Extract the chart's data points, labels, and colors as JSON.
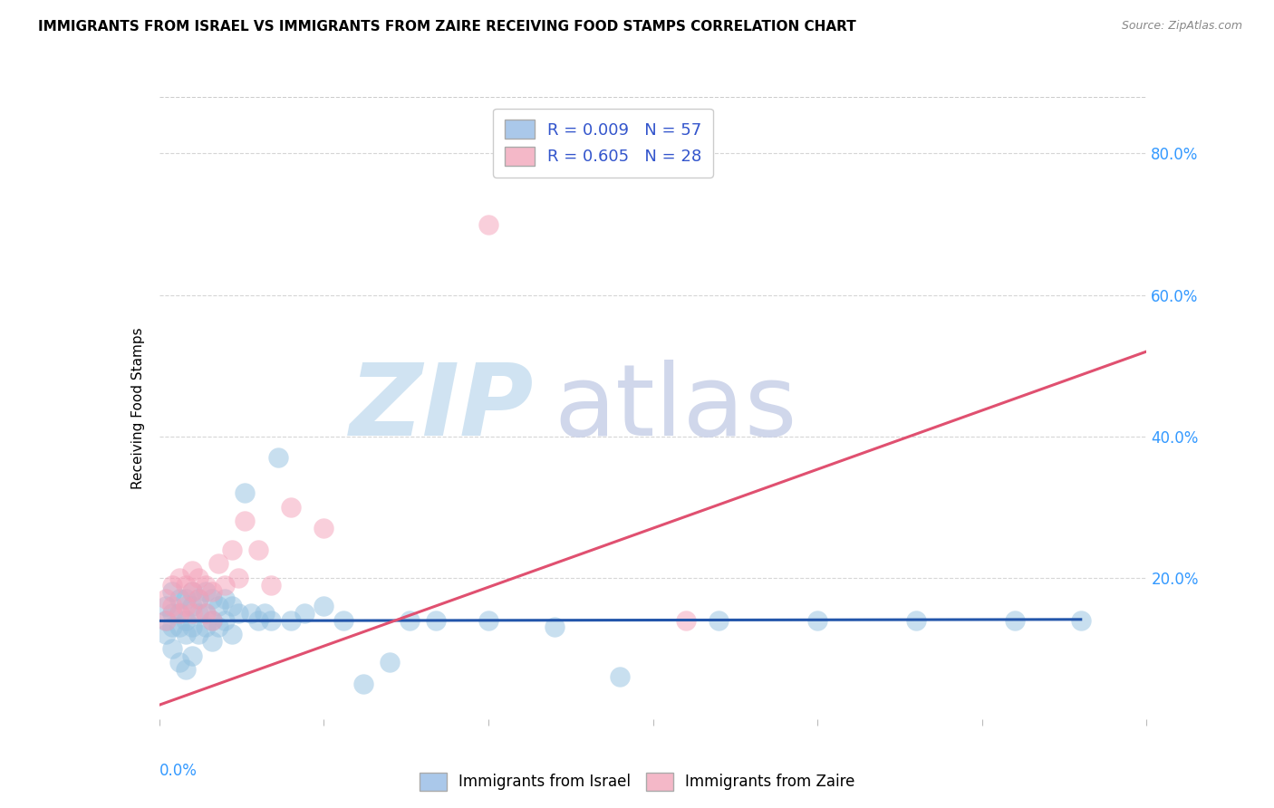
{
  "title": "IMMIGRANTS FROM ISRAEL VS IMMIGRANTS FROM ZAIRE RECEIVING FOOD STAMPS CORRELATION CHART",
  "source": "Source: ZipAtlas.com",
  "ylabel": "Receiving Food Stamps",
  "xlim": [
    0.0,
    0.15
  ],
  "ylim": [
    0.0,
    0.88
  ],
  "ytick_vals": [
    0.2,
    0.4,
    0.6,
    0.8
  ],
  "ytick_labels": [
    "20.0%",
    "40.0%",
    "60.0%",
    "80.0%"
  ],
  "xtick_vals": [
    0.0,
    0.025,
    0.05,
    0.075,
    0.1,
    0.125,
    0.15
  ],
  "legend_label_israel": "Immigrants from Israel",
  "legend_label_zaire": "Immigrants from Zaire",
  "israel_color": "#92c0e0",
  "zaire_color": "#f4a0b8",
  "israel_line_color": "#2255aa",
  "zaire_line_color": "#e05070",
  "israel_legend_color": "#aac8ea",
  "zaire_legend_color": "#f4b8c8",
  "israel_R": "0.009",
  "israel_N": "57",
  "zaire_R": "0.605",
  "zaire_N": "28",
  "israel_x": [
    0.001,
    0.001,
    0.001,
    0.002,
    0.002,
    0.002,
    0.002,
    0.003,
    0.003,
    0.003,
    0.003,
    0.004,
    0.004,
    0.004,
    0.004,
    0.005,
    0.005,
    0.005,
    0.005,
    0.006,
    0.006,
    0.006,
    0.007,
    0.007,
    0.007,
    0.008,
    0.008,
    0.008,
    0.009,
    0.009,
    0.01,
    0.01,
    0.011,
    0.011,
    0.012,
    0.013,
    0.014,
    0.015,
    0.016,
    0.017,
    0.018,
    0.02,
    0.022,
    0.025,
    0.028,
    0.031,
    0.035,
    0.038,
    0.042,
    0.05,
    0.06,
    0.07,
    0.085,
    0.1,
    0.115,
    0.13,
    0.14
  ],
  "israel_y": [
    0.16,
    0.14,
    0.12,
    0.18,
    0.15,
    0.13,
    0.1,
    0.17,
    0.15,
    0.13,
    0.08,
    0.17,
    0.14,
    0.12,
    0.07,
    0.18,
    0.16,
    0.13,
    0.09,
    0.17,
    0.15,
    0.12,
    0.18,
    0.15,
    0.13,
    0.17,
    0.14,
    0.11,
    0.16,
    0.13,
    0.17,
    0.14,
    0.16,
    0.12,
    0.15,
    0.32,
    0.15,
    0.14,
    0.15,
    0.14,
    0.37,
    0.14,
    0.15,
    0.16,
    0.14,
    0.05,
    0.08,
    0.14,
    0.14,
    0.14,
    0.13,
    0.06,
    0.14,
    0.14,
    0.14,
    0.14,
    0.14
  ],
  "zaire_x": [
    0.001,
    0.001,
    0.002,
    0.002,
    0.003,
    0.003,
    0.004,
    0.004,
    0.005,
    0.005,
    0.005,
    0.006,
    0.006,
    0.007,
    0.007,
    0.008,
    0.008,
    0.009,
    0.01,
    0.011,
    0.012,
    0.013,
    0.015,
    0.017,
    0.02,
    0.025,
    0.05,
    0.08
  ],
  "zaire_y": [
    0.17,
    0.14,
    0.19,
    0.16,
    0.2,
    0.15,
    0.19,
    0.16,
    0.21,
    0.18,
    0.15,
    0.2,
    0.17,
    0.19,
    0.15,
    0.18,
    0.14,
    0.22,
    0.19,
    0.24,
    0.2,
    0.28,
    0.24,
    0.19,
    0.3,
    0.27,
    0.7,
    0.14
  ],
  "israel_line_x": [
    0.0,
    0.14
  ],
  "israel_line_y": [
    0.139,
    0.141
  ],
  "zaire_line_x": [
    0.0,
    0.15
  ],
  "zaire_line_y": [
    0.02,
    0.52
  ],
  "grid_color": "#cccccc",
  "grid_linestyle": "--",
  "grid_alpha": 0.8,
  "border_color": "#dddddd",
  "tick_color": "#3399ff",
  "watermark_zip_color": "#c8dff0",
  "watermark_atlas_color": "#c8d0e8"
}
